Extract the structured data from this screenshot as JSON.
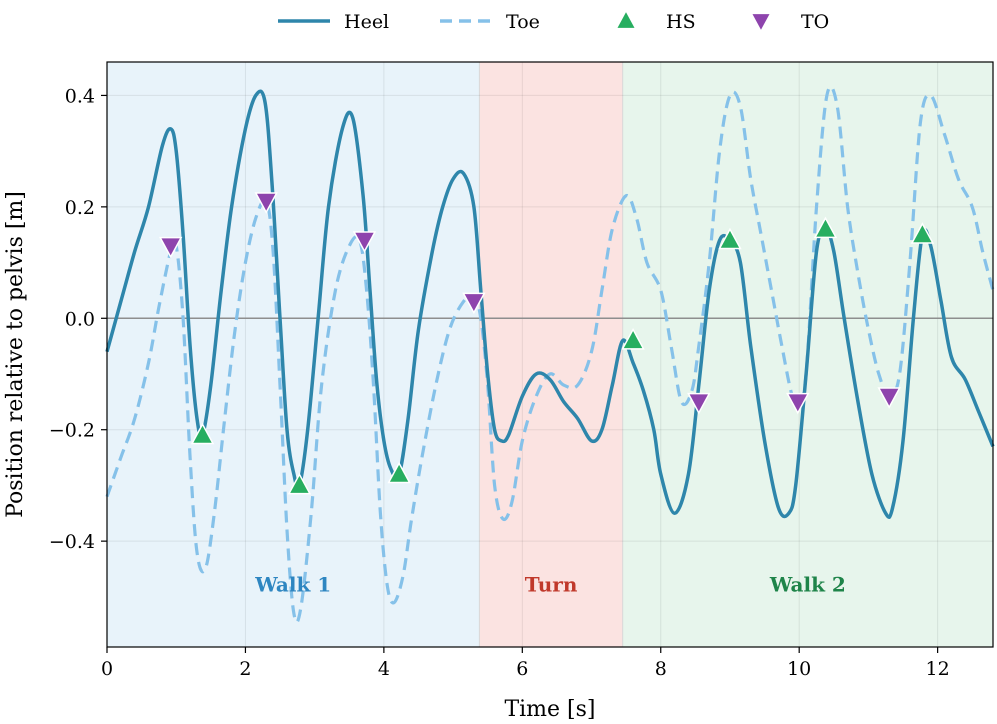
{
  "chart_data": {
    "type": "line",
    "xlabel": "Time [s]",
    "ylabel": "Position relative to pelvis [m]",
    "xlim": [
      0,
      12.8
    ],
    "ylim": [
      -0.59,
      0.46
    ],
    "xticks": [
      0,
      2,
      4,
      6,
      8,
      10,
      12
    ],
    "yticks": [
      -0.4,
      -0.2,
      0.0,
      0.2,
      0.4
    ],
    "ytick_labels": [
      "−0.4",
      "−0.2",
      "0.0",
      "0.2",
      "0.4"
    ],
    "grid": true,
    "zero_line": true,
    "legend": {
      "placement": "top-center-outside",
      "entries": [
        {
          "label": "Heel",
          "kind": "solid-line",
          "color": "#2e86ab"
        },
        {
          "label": "Toe",
          "kind": "dashed-line",
          "color": "#85c1e9"
        },
        {
          "label": "HS",
          "kind": "triangle-up",
          "color": "#27ae60"
        },
        {
          "label": "TO",
          "kind": "triangle-down",
          "color": "#8e44ad"
        }
      ]
    },
    "regions": [
      {
        "label": "Walk 1",
        "x0": 0,
        "x1": 5.38,
        "fill": "#e8f3fa",
        "text_color": "#2e86c1"
      },
      {
        "label": "Turn",
        "x0": 5.38,
        "x1": 7.45,
        "fill": "#fbe3e1",
        "text_color": "#c0392b"
      },
      {
        "label": "Walk 2",
        "x0": 7.45,
        "x1": 12.8,
        "fill": "#e7f5ec",
        "text_color": "#1e8449"
      }
    ],
    "series": [
      {
        "name": "Heel",
        "style": "solid",
        "color": "#2e86ab",
        "x": [
          0,
          0.2,
          0.4,
          0.6,
          0.8,
          0.92,
          1.0,
          1.1,
          1.2,
          1.3,
          1.38,
          1.5,
          1.65,
          1.8,
          2.0,
          2.15,
          2.28,
          2.38,
          2.5,
          2.6,
          2.7,
          2.78,
          2.9,
          3.05,
          3.2,
          3.4,
          3.55,
          3.7,
          3.8,
          3.9,
          4.0,
          4.1,
          4.22,
          4.35,
          4.5,
          4.7,
          4.85,
          5.0,
          5.15,
          5.3,
          5.4,
          5.5,
          5.6,
          5.7,
          5.8,
          6.0,
          6.2,
          6.4,
          6.6,
          6.8,
          7.0,
          7.15,
          7.3,
          7.45,
          7.6,
          7.75,
          7.9,
          8.0,
          8.2,
          8.4,
          8.55,
          8.7,
          8.85,
          9.0,
          9.15,
          9.3,
          9.5,
          9.7,
          9.85,
          9.95,
          10.1,
          10.25,
          10.38,
          10.5,
          10.65,
          10.85,
          11.05,
          11.25,
          11.35,
          11.5,
          11.65,
          11.78,
          11.9,
          12.05,
          12.2,
          12.4,
          12.6,
          12.8
        ],
        "y": [
          -0.06,
          0.03,
          0.12,
          0.2,
          0.31,
          0.34,
          0.3,
          0.15,
          -0.05,
          -0.18,
          -0.21,
          -0.12,
          0.05,
          0.2,
          0.34,
          0.4,
          0.39,
          0.25,
          0.0,
          -0.2,
          -0.28,
          -0.3,
          -0.2,
          0.0,
          0.2,
          0.34,
          0.36,
          0.22,
          0.05,
          -0.12,
          -0.22,
          -0.27,
          -0.28,
          -0.18,
          -0.02,
          0.12,
          0.2,
          0.25,
          0.26,
          0.2,
          0.05,
          -0.1,
          -0.2,
          -0.22,
          -0.21,
          -0.14,
          -0.1,
          -0.11,
          -0.15,
          -0.18,
          -0.22,
          -0.2,
          -0.12,
          -0.04,
          -0.08,
          -0.13,
          -0.2,
          -0.28,
          -0.35,
          -0.28,
          -0.12,
          0.05,
          0.14,
          0.14,
          0.1,
          -0.05,
          -0.22,
          -0.34,
          -0.35,
          -0.3,
          -0.1,
          0.12,
          0.16,
          0.12,
          0.0,
          -0.15,
          -0.28,
          -0.35,
          -0.34,
          -0.22,
          0.0,
          0.15,
          0.13,
          0.03,
          -0.07,
          -0.11,
          -0.17,
          -0.23
        ]
      },
      {
        "name": "Toe",
        "style": "dashed",
        "color": "#85c1e9",
        "x": [
          0,
          0.2,
          0.4,
          0.6,
          0.75,
          0.92,
          1.0,
          1.1,
          1.2,
          1.3,
          1.42,
          1.55,
          1.7,
          1.85,
          2.0,
          2.15,
          2.3,
          2.4,
          2.5,
          2.6,
          2.7,
          2.8,
          2.95,
          3.1,
          3.3,
          3.5,
          3.65,
          3.75,
          3.85,
          3.95,
          4.05,
          4.15,
          4.28,
          4.4,
          4.55,
          4.75,
          4.95,
          5.15,
          5.3,
          5.4,
          5.5,
          5.6,
          5.72,
          5.85,
          6.0,
          6.2,
          6.4,
          6.6,
          6.8,
          7.0,
          7.15,
          7.3,
          7.5,
          7.65,
          7.8,
          8.0,
          8.15,
          8.3,
          8.45,
          8.55,
          8.7,
          8.85,
          9.0,
          9.15,
          9.3,
          9.45,
          9.6,
          9.75,
          9.9,
          10.0,
          10.1,
          10.25,
          10.4,
          10.55,
          10.7,
          10.85,
          11.0,
          11.15,
          11.3,
          11.45,
          11.6,
          11.75,
          11.9,
          12.1,
          12.3,
          12.5,
          12.65,
          12.8
        ],
        "y": [
          -0.32,
          -0.25,
          -0.18,
          -0.08,
          0.02,
          0.12,
          0.13,
          0.0,
          -0.25,
          -0.42,
          -0.45,
          -0.35,
          -0.18,
          -0.02,
          0.1,
          0.18,
          0.21,
          0.12,
          -0.12,
          -0.38,
          -0.53,
          -0.52,
          -0.35,
          -0.12,
          0.05,
          0.13,
          0.14,
          0.05,
          -0.12,
          -0.35,
          -0.48,
          -0.51,
          -0.46,
          -0.36,
          -0.25,
          -0.12,
          -0.02,
          0.03,
          0.04,
          0.0,
          -0.12,
          -0.3,
          -0.36,
          -0.33,
          -0.22,
          -0.14,
          -0.1,
          -0.12,
          -0.12,
          -0.06,
          0.05,
          0.16,
          0.22,
          0.18,
          0.1,
          0.05,
          -0.05,
          -0.15,
          -0.13,
          -0.05,
          0.1,
          0.3,
          0.4,
          0.38,
          0.25,
          0.15,
          0.05,
          -0.05,
          -0.14,
          -0.15,
          -0.1,
          0.2,
          0.4,
          0.38,
          0.2,
          0.08,
          -0.02,
          -0.1,
          -0.14,
          -0.1,
          0.1,
          0.35,
          0.4,
          0.33,
          0.25,
          0.2,
          0.12,
          0.05
        ]
      },
      {
        "name": "HS",
        "style": "marker",
        "marker": "triangle-up",
        "color": "#27ae60",
        "x": [
          1.38,
          2.78,
          4.22,
          7.6,
          9.0,
          10.38,
          11.78
        ],
        "y": [
          -0.21,
          -0.3,
          -0.28,
          -0.04,
          0.14,
          0.16,
          0.15
        ]
      },
      {
        "name": "TO",
        "style": "marker",
        "marker": "triangle-down",
        "color": "#8e44ad",
        "x": [
          0.92,
          2.3,
          3.72,
          5.3,
          8.55,
          9.98,
          11.3
        ],
        "y": [
          0.13,
          0.21,
          0.14,
          0.03,
          -0.15,
          -0.15,
          -0.14
        ]
      }
    ]
  }
}
